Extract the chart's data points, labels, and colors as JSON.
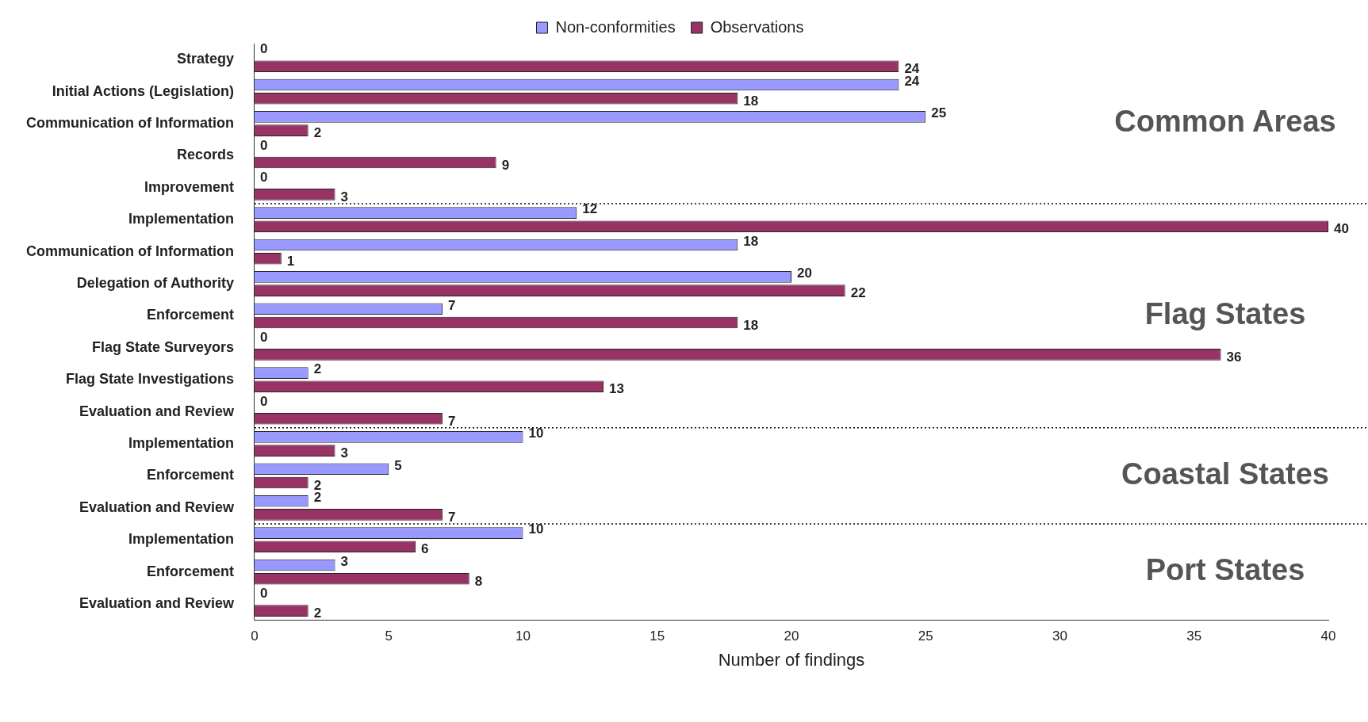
{
  "chart_data": {
    "type": "bar",
    "orientation": "horizontal",
    "categories": [
      "Strategy",
      "Initial Actions (Legislation)",
      "Communication of Information",
      "Records",
      "Improvement",
      "Implementation",
      "Communication of Information",
      "Delegation of Authority",
      "Enforcement",
      "Flag State Surveyors",
      "Flag State Investigations",
      "Evaluation and Review",
      "Implementation",
      "Enforcement",
      "Evaluation and Review",
      "Implementation",
      "Enforcement",
      "Evaluation and Review"
    ],
    "series": [
      {
        "name": "Non-conformities",
        "color": "#9999ff",
        "values": [
          0,
          24,
          25,
          0,
          0,
          12,
          18,
          20,
          7,
          0,
          2,
          0,
          10,
          5,
          2,
          10,
          3,
          0
        ]
      },
      {
        "name": "Observations",
        "color": "#993366",
        "values": [
          24,
          18,
          2,
          9,
          3,
          40,
          1,
          22,
          18,
          36,
          13,
          7,
          3,
          2,
          7,
          6,
          8,
          2
        ]
      }
    ],
    "xlim": [
      0,
      40
    ],
    "xticks": [
      0,
      5,
      10,
      15,
      20,
      25,
      30,
      35,
      40
    ],
    "xlabel": "Number of findings",
    "legend": "top",
    "grid": false,
    "data_labels": true,
    "annotations": [
      "Common Areas",
      "Flag States",
      "Coastal States",
      "Port States"
    ]
  }
}
